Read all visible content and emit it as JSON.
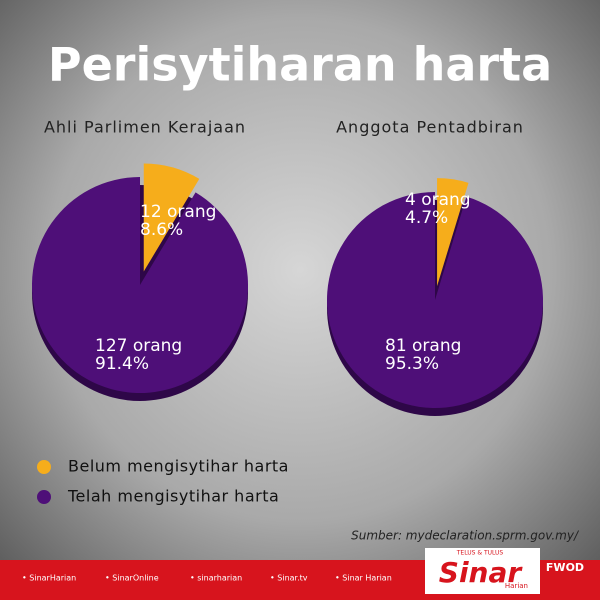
{
  "title": "Perisytiharan harta",
  "source": "Sumber: mydeclaration.sprm.gov.my/",
  "footer": {
    "links": [
      "• SinarHarian",
      "• SinarOnline",
      "• sinarharian",
      "• Sinar.tv",
      "• Sinar Harian"
    ],
    "brand": "Sinar",
    "brand_sub": "Harian",
    "tagline": "TELUS & TULUS",
    "tag": "FWOD"
  },
  "chart_data": [
    {
      "type": "pie",
      "title": "Ahli Parlimen Kerajaan",
      "categories": [
        "Belum mengisytihar harta",
        "Telah mengisytihar harta"
      ],
      "colors": [
        "#f6ad1b",
        "#4e0f78"
      ],
      "values": [
        8.6,
        91.4
      ],
      "value_labels": [
        "8.6%",
        "91.4%"
      ],
      "counts": [
        12,
        127
      ],
      "count_labels": [
        "12 orang",
        "127 orang"
      ]
    },
    {
      "type": "pie",
      "title": "Anggota Pentadbiran",
      "categories": [
        "Belum mengisytihar harta",
        "Telah mengisytihar harta"
      ],
      "colors": [
        "#f6ad1b",
        "#4e0f78"
      ],
      "values": [
        4.7,
        95.3
      ],
      "value_labels": [
        "4.7%",
        "95.3%"
      ],
      "counts": [
        4,
        81
      ],
      "count_labels": [
        "4 orang",
        "81 orang"
      ]
    }
  ]
}
